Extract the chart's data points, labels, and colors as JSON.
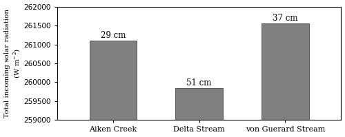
{
  "categories": [
    "Aiken Creek",
    "Delta Stream",
    "von Guerard Stream"
  ],
  "values": [
    261100,
    259850,
    261550
  ],
  "labels": [
    "29 cm",
    "51 cm",
    "37 cm"
  ],
  "bar_color": "#808080",
  "bar_edgecolor": "#555555",
  "ylim": [
    259000,
    262000
  ],
  "yticks": [
    259000,
    259500,
    260000,
    260500,
    261000,
    261500,
    262000
  ],
  "ylabel_line1": "Total incoming solar radiation",
  "ylabel_line2": "(W m-2)",
  "background_color": "#ffffff",
  "bar_width": 0.55,
  "label_fontsize": 8.5,
  "tick_fontsize": 7.5,
  "ylabel_fontsize": 7.5,
  "xtick_fontsize": 8
}
